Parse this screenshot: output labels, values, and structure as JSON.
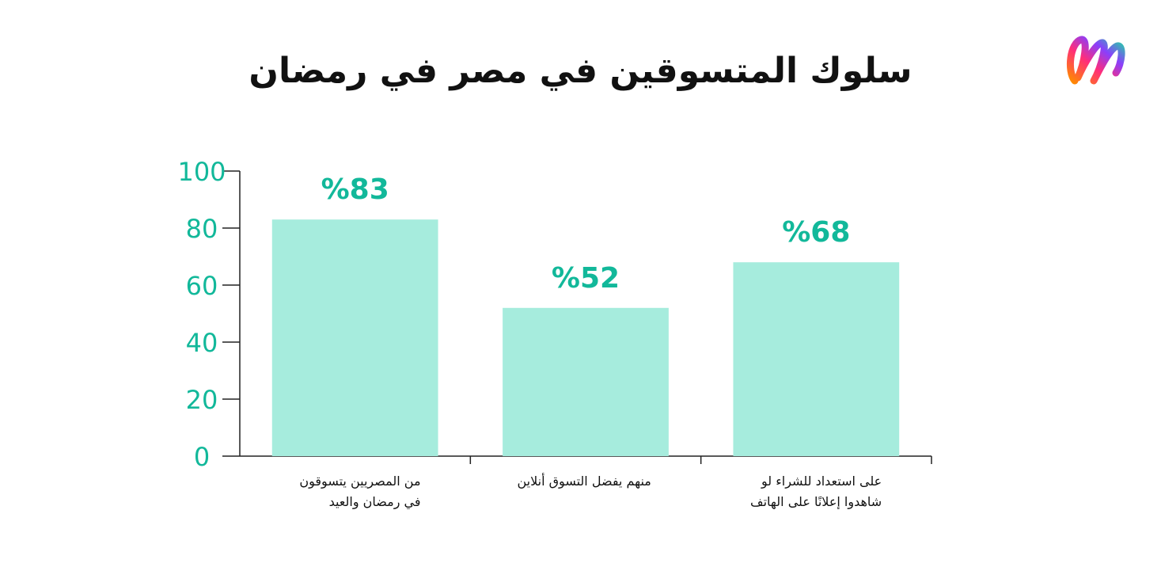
{
  "title": "سلوك المتسوقين في مصر في رمضان",
  "logo": {
    "icon": "brand-logo-icon",
    "colors": [
      "#ff8a00",
      "#ff2d7a",
      "#8a3ffc",
      "#22d3a6"
    ]
  },
  "chart_data": {
    "type": "bar",
    "categories": [
      "من المصريين يتسوقون في رمضان والعيد",
      "منهم يفضل التسوق أنلاين",
      "على استعداد للشراء لو شاهدوا إعلانًا على الهاتف"
    ],
    "category_lines": [
      [
        "من المصريين يتسوقون",
        "في رمضان والعيد"
      ],
      [
        "منهم يفضل التسوق أنلاين"
      ],
      [
        "على استعداد للشراء لو",
        "شاهدوا إعلانًا على الهاتف"
      ]
    ],
    "values": [
      83,
      52,
      68
    ],
    "data_labels": [
      "%83",
      "%52",
      "%68"
    ],
    "ylim": [
      0,
      100
    ],
    "yticks": [
      0,
      20,
      40,
      60,
      80,
      100
    ],
    "ytick_labels": [
      "0",
      "20",
      "40",
      "60",
      "80",
      "100"
    ],
    "xlabel": "",
    "ylabel": "",
    "grid": false,
    "bar_color": "#a6ecdd",
    "label_color": "#12b89a",
    "axis_color": "#222222"
  }
}
